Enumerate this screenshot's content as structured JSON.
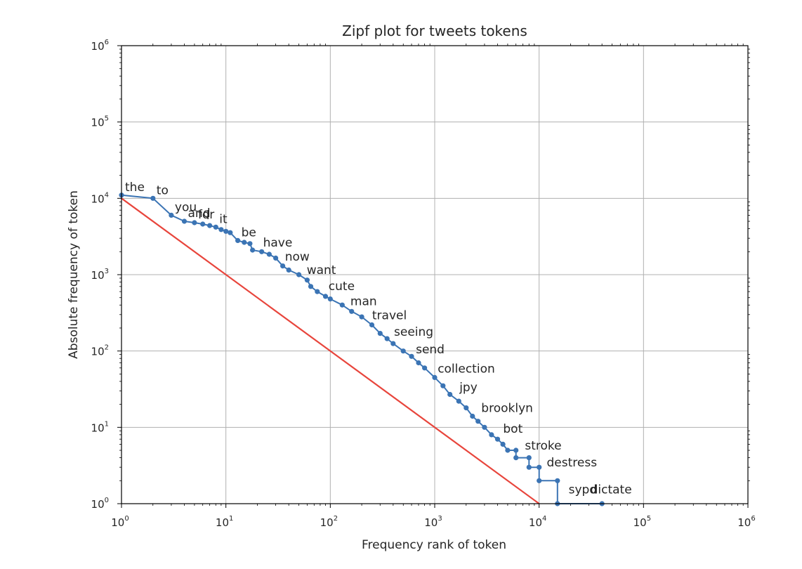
{
  "chart_data": {
    "type": "line",
    "title": "Zipf plot for tweets tokens",
    "xlabel": "Frequency rank of token",
    "ylabel": "Absolute frequency of token",
    "xscale": "log",
    "yscale": "log",
    "xlim": [
      1,
      1000000
    ],
    "ylim": [
      1,
      1000000
    ],
    "grid": true,
    "x_ticks": [
      {
        "base": "10",
        "exp": "0",
        "value": 1
      },
      {
        "base": "10",
        "exp": "1",
        "value": 10
      },
      {
        "base": "10",
        "exp": "2",
        "value": 100
      },
      {
        "base": "10",
        "exp": "3",
        "value": 1000
      },
      {
        "base": "10",
        "exp": "4",
        "value": 10000
      },
      {
        "base": "10",
        "exp": "5",
        "value": 100000
      },
      {
        "base": "10",
        "exp": "6",
        "value": 1000000
      }
    ],
    "y_ticks": [
      {
        "base": "10",
        "exp": "0",
        "value": 1
      },
      {
        "base": "10",
        "exp": "1",
        "value": 10
      },
      {
        "base": "10",
        "exp": "2",
        "value": 100
      },
      {
        "base": "10",
        "exp": "3",
        "value": 1000
      },
      {
        "base": "10",
        "exp": "4",
        "value": 10000
      },
      {
        "base": "10",
        "exp": "5",
        "value": 100000
      },
      {
        "base": "10",
        "exp": "6",
        "value": 1000000
      }
    ],
    "series": [
      {
        "color": "#3b74b4",
        "marker": "dot",
        "points": [
          [
            1,
            11000
          ],
          [
            2,
            10000
          ],
          [
            3,
            6000
          ],
          [
            4,
            5000
          ],
          [
            5,
            4800
          ],
          [
            6,
            4600
          ],
          [
            7,
            4400
          ],
          [
            8,
            4200
          ],
          [
            9,
            3900
          ],
          [
            10,
            3700
          ],
          [
            11,
            3550
          ],
          [
            13,
            2800
          ],
          [
            15,
            2650
          ],
          [
            17,
            2550
          ],
          [
            18,
            2100
          ],
          [
            22,
            2000
          ],
          [
            26,
            1850
          ],
          [
            30,
            1650
          ],
          [
            35,
            1300
          ],
          [
            40,
            1150
          ],
          [
            50,
            1000
          ],
          [
            60,
            850
          ],
          [
            65,
            700
          ],
          [
            75,
            600
          ],
          [
            90,
            520
          ],
          [
            100,
            480
          ],
          [
            130,
            400
          ],
          [
            160,
            330
          ],
          [
            200,
            280
          ],
          [
            250,
            220
          ],
          [
            300,
            170
          ],
          [
            350,
            145
          ],
          [
            400,
            125
          ],
          [
            500,
            100
          ],
          [
            600,
            85
          ],
          [
            700,
            70
          ],
          [
            800,
            60
          ],
          [
            1000,
            45
          ],
          [
            1200,
            35
          ],
          [
            1400,
            27
          ],
          [
            1700,
            22
          ],
          [
            2000,
            18
          ],
          [
            2300,
            14
          ],
          [
            2600,
            12
          ],
          [
            3000,
            10
          ],
          [
            3500,
            8
          ],
          [
            4000,
            7
          ],
          [
            4500,
            6
          ],
          [
            5000,
            5
          ],
          [
            6000,
            5
          ],
          [
            6000,
            4
          ],
          [
            8000,
            4
          ],
          [
            8000,
            3
          ],
          [
            10000,
            3
          ],
          [
            10000,
            2
          ],
          [
            15000,
            2
          ],
          [
            15000,
            1
          ],
          [
            40000,
            1
          ]
        ]
      },
      {
        "color": "#e8453c",
        "marker": "none",
        "points": [
          [
            1,
            10000
          ],
          [
            10000,
            1
          ]
        ]
      }
    ],
    "annotations": [
      {
        "text": "the",
        "x": 1,
        "y": 11000
      },
      {
        "text": "to",
        "x": 2,
        "y": 10000
      },
      {
        "text": "you",
        "x": 3,
        "y": 6000
      },
      {
        "text": "and",
        "x": 4,
        "y": 5000
      },
      {
        "text": "for",
        "x": 5,
        "y": 4800
      },
      {
        "text": "i",
        "x": 6,
        "y": 4700
      },
      {
        "text": "it",
        "x": 8,
        "y": 4200
      },
      {
        "text": "be",
        "x": 13,
        "y": 2800
      },
      {
        "text": "have",
        "x": 21,
        "y": 2050
      },
      {
        "text": "now",
        "x": 34,
        "y": 1350
      },
      {
        "text": "want",
        "x": 55,
        "y": 900
      },
      {
        "text": "cute",
        "x": 89,
        "y": 550
      },
      {
        "text": "man",
        "x": 144,
        "y": 350
      },
      {
        "text": "travel",
        "x": 233,
        "y": 230
      },
      {
        "text": "seeing",
        "x": 377,
        "y": 140
      },
      {
        "text": "send",
        "x": 610,
        "y": 82
      },
      {
        "text": "collection",
        "x": 987,
        "y": 46
      },
      {
        "text": "jpy",
        "x": 1597,
        "y": 26
      },
      {
        "text": "brooklyn",
        "x": 2584,
        "y": 14
      },
      {
        "text": "bot",
        "x": 4181,
        "y": 7.5
      },
      {
        "text": "stroke",
        "x": 6765,
        "y": 4.5
      },
      {
        "text": "destress",
        "x": 10946,
        "y": 2.7
      },
      {
        "text": "sypd",
        "x": 17711,
        "y": 1.2
      },
      {
        "text": "dictate",
        "x": 28657,
        "y": 1.2
      }
    ]
  }
}
